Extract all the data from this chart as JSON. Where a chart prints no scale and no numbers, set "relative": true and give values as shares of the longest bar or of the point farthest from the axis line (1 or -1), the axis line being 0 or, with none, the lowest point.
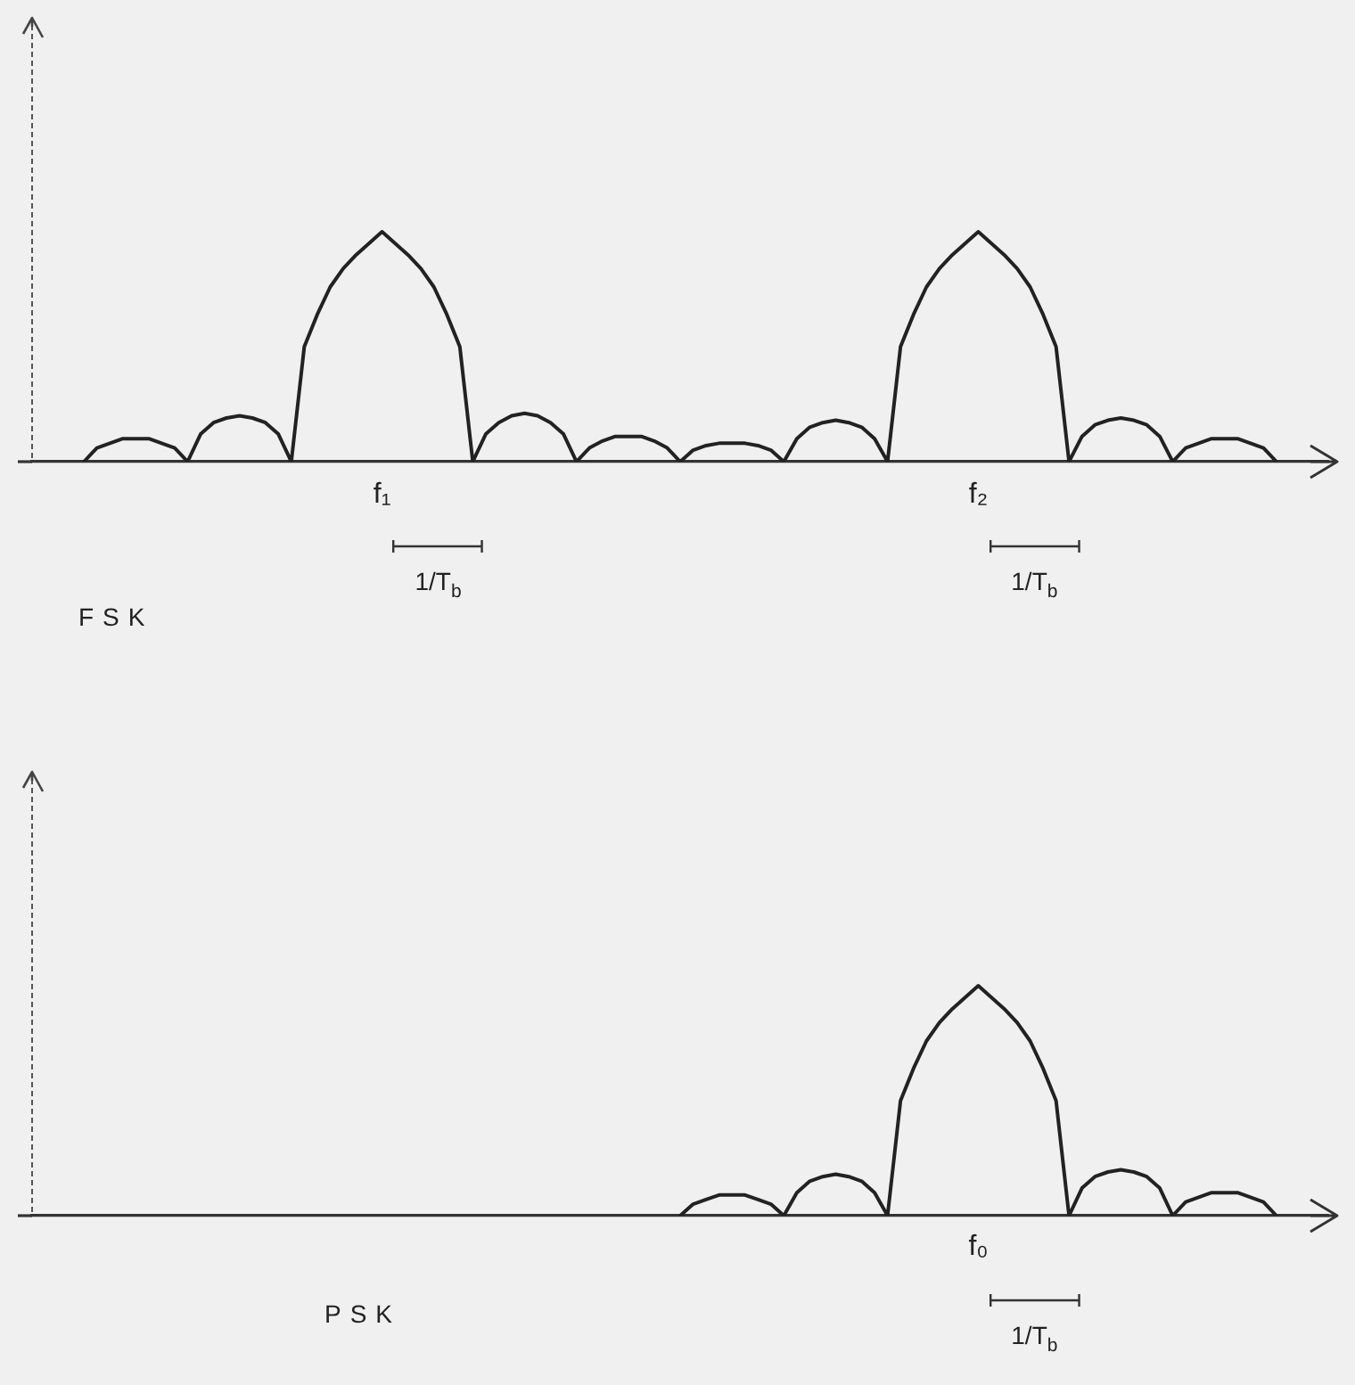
{
  "chart_data": [
    {
      "type": "line",
      "title": "FSK",
      "relative": true,
      "color": "#222222",
      "categories": [
        null,
        null,
        null,
        null,
        null,
        null,
        null,
        null,
        null,
        null,
        null,
        null,
        null,
        null,
        null,
        null,
        null,
        null,
        null,
        null,
        null,
        null,
        null,
        null,
        null,
        null,
        null,
        "f₁",
        null,
        null,
        null,
        null,
        null,
        null,
        null,
        null,
        null,
        null,
        null,
        null,
        null,
        null,
        null,
        null,
        null,
        null,
        null,
        null,
        null,
        null,
        null,
        null,
        null,
        null,
        null,
        null,
        null,
        null,
        null,
        null,
        null,
        null,
        null,
        null,
        null,
        null,
        null,
        null,
        null,
        null,
        null,
        null,
        null,
        "f₂",
        null,
        null,
        null,
        null,
        null,
        null,
        null,
        null,
        null,
        null,
        null,
        null,
        null,
        null,
        null,
        null,
        null,
        null,
        null,
        null,
        null,
        null,
        null,
        null,
        null,
        null,
        null
      ],
      "values": [
        null,
        null,
        null,
        null,
        0,
        0.06,
        0.08,
        0.1,
        0.1,
        0.1,
        0.08,
        0.06,
        0,
        0.12,
        0.17,
        0.19,
        0.2,
        0.19,
        0.17,
        0.12,
        0,
        0.5,
        0.64,
        0.76,
        0.84,
        0.9,
        0.95,
        1,
        0.95,
        0.9,
        0.84,
        0.76,
        0.64,
        0.5,
        0,
        0.12,
        0.17,
        0.2,
        0.21,
        0.2,
        0.17,
        0.12,
        0,
        0.06,
        0.09,
        0.11,
        0.11,
        0.11,
        0.09,
        0.06,
        0,
        0.05,
        0.07,
        0.08,
        0.08,
        0.08,
        0.07,
        0.05,
        0,
        0.1,
        0.15,
        0.17,
        0.18,
        0.17,
        0.15,
        0.1,
        0,
        0.5,
        0.64,
        0.76,
        0.84,
        0.9,
        0.95,
        1,
        0.95,
        0.9,
        0.84,
        0.76,
        0.64,
        0.5,
        0,
        0.11,
        0.16,
        0.18,
        0.19,
        0.18,
        0.16,
        0.11,
        0,
        0.06,
        0.08,
        0.1,
        0.1,
        0.1,
        0.08,
        0.06,
        0,
        null,
        null,
        null,
        null
      ],
      "annotations": [
        "1/T$_{b}$",
        "1/T$_{b}$"
      ]
    },
    {
      "type": "line",
      "title": "PSK",
      "relative": true,
      "color": "#222222",
      "categories": [
        null,
        null,
        null,
        null,
        null,
        null,
        null,
        null,
        null,
        null,
        null,
        null,
        null,
        null,
        null,
        null,
        null,
        null,
        null,
        null,
        null,
        null,
        null,
        null,
        null,
        null,
        null,
        null,
        null,
        null,
        null,
        null,
        null,
        null,
        null,
        null,
        null,
        null,
        null,
        null,
        null,
        null,
        null,
        null,
        null,
        null,
        null,
        null,
        null,
        null,
        null,
        null,
        null,
        null,
        null,
        null,
        null,
        null,
        null,
        null,
        null,
        null,
        null,
        null,
        null,
        null,
        null,
        null,
        null,
        null,
        null,
        null,
        null,
        null,
        null,
        null,
        null,
        null,
        null,
        null,
        null,
        null,
        null,
        null,
        null,
        null,
        null,
        null,
        null,
        null,
        null,
        null,
        null,
        null,
        null,
        null,
        null,
        null,
        null,
        null,
        null
      ],
      "values": [
        null,
        null,
        null,
        null,
        null,
        null,
        null,
        null,
        null,
        null,
        null,
        null,
        null,
        null,
        null,
        null,
        null,
        null,
        null,
        null,
        null,
        null,
        null,
        null,
        null,
        null,
        null,
        null,
        null,
        null,
        null,
        null,
        null,
        null,
        null,
        null,
        null,
        null,
        null,
        null,
        null,
        null,
        null,
        null,
        null,
        null,
        null,
        null,
        null,
        null,
        0,
        0.05,
        0.07,
        0.09,
        0.09,
        0.09,
        0.07,
        0.05,
        0,
        0.1,
        0.15,
        0.17,
        0.18,
        0.17,
        0.15,
        0.1,
        0,
        0.5,
        0.64,
        0.76,
        0.84,
        0.9,
        0.95,
        1,
        0.95,
        0.9,
        0.84,
        0.76,
        0.64,
        0.5,
        0,
        0.12,
        0.17,
        0.19,
        0.2,
        0.19,
        0.17,
        0.12,
        0,
        0.06,
        0.08,
        0.1,
        0.1,
        0.1,
        0.08,
        0.06,
        0,
        null,
        null,
        null,
        null
      ],
      "annotations": [
        "f₀",
        "1/T$_{b}$"
      ]
    }
  ]
}
